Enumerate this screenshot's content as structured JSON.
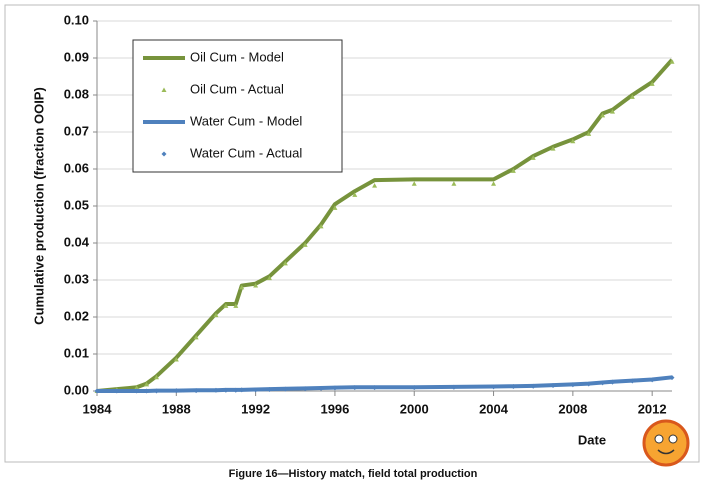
{
  "chart_data": {
    "type": "line",
    "caption": "Figure 16—History match, field total production",
    "y_label": "Cumulative production (fraction OOIP)",
    "x_label": "Date",
    "x": [
      1984,
      1985,
      1986,
      1986.5,
      1987,
      1988,
      1989,
      1990,
      1990.5,
      1991,
      1991.3,
      1992,
      1992.7,
      1993.5,
      1994.5,
      1995.3,
      1996,
      1997,
      1998,
      2000,
      2002,
      2004,
      2005,
      2006,
      2007,
      2008,
      2008.8,
      2009.5,
      2010,
      2011,
      2012,
      2013
    ],
    "series": [
      {
        "name": "Oil Cum - Model",
        "color": "#77933c",
        "mode": "line",
        "values": [
          0,
          0.0005,
          0.001,
          0.002,
          0.004,
          0.009,
          0.015,
          0.021,
          0.0235,
          0.0235,
          0.0285,
          0.029,
          0.031,
          0.035,
          0.04,
          0.045,
          0.0505,
          0.054,
          0.057,
          0.0572,
          0.0572,
          0.0572,
          0.06,
          0.0635,
          0.066,
          0.068,
          0.07,
          0.075,
          0.076,
          0.08,
          0.0835,
          0.0895
        ]
      },
      {
        "name": "Oil Cum - Actual",
        "color": "#9bbb59",
        "mode": "markers",
        "marker": "triangle",
        "values": [
          0,
          0.0004,
          0.0009,
          0.0018,
          0.0037,
          0.0085,
          0.0145,
          0.0205,
          0.023,
          0.023,
          0.028,
          0.0285,
          0.0305,
          0.0345,
          0.0395,
          0.0445,
          0.0495,
          0.053,
          0.0555,
          0.056,
          0.056,
          0.056,
          0.0595,
          0.063,
          0.0655,
          0.0675,
          0.0695,
          0.0745,
          0.0755,
          0.0795,
          0.083,
          0.089
        ]
      },
      {
        "name": "Water Cum - Model",
        "color": "#4f81bd",
        "mode": "line",
        "values": [
          0,
          0,
          0,
          0,
          0.0001,
          0.0001,
          0.0002,
          0.0002,
          0.0003,
          0.0003,
          0.0003,
          0.0004,
          0.0005,
          0.0006,
          0.0007,
          0.0008,
          0.0009,
          0.001,
          0.001,
          0.001,
          0.0011,
          0.0012,
          0.0013,
          0.0014,
          0.0016,
          0.0018,
          0.002,
          0.0023,
          0.0025,
          0.0028,
          0.0031,
          0.0037
        ]
      },
      {
        "name": "Water Cum - Actual",
        "color": "#4f81bd",
        "mode": "markers",
        "marker": "diamond",
        "values": [
          0,
          0,
          0,
          0,
          0,
          0.0001,
          0.0001,
          0.0002,
          0.0002,
          0.0002,
          0.0003,
          0.0003,
          0.0004,
          0.0005,
          0.0006,
          0.0007,
          0.0008,
          0.0009,
          0.0009,
          0.0009,
          0.001,
          0.0011,
          0.0012,
          0.0013,
          0.0015,
          0.0017,
          0.0019,
          0.0022,
          0.0024,
          0.0027,
          0.003,
          0.0036
        ]
      }
    ],
    "xlim": [
      1984,
      2013
    ],
    "xticks": [
      1984,
      1988,
      1992,
      1996,
      2000,
      2004,
      2008,
      2012
    ],
    "ylim": [
      0,
      0.1
    ],
    "yticks": [
      {
        "value": 0,
        "label": "0.00"
      },
      {
        "value": 0.01,
        "label": "0.01"
      },
      {
        "value": 0.02,
        "label": "0.02"
      },
      {
        "value": 0.03,
        "label": "0.03"
      },
      {
        "value": 0.04,
        "label": "0.04"
      },
      {
        "value": 0.05,
        "label": "0.05"
      },
      {
        "value": 0.06,
        "label": "0.06"
      },
      {
        "value": 0.07,
        "label": "0.07"
      },
      {
        "value": 0.08,
        "label": "0.08"
      },
      {
        "value": 0.09,
        "label": "0.09"
      },
      {
        "value": 0.1,
        "label": "0.10"
      }
    ],
    "grid": true,
    "legend": "upper left"
  }
}
